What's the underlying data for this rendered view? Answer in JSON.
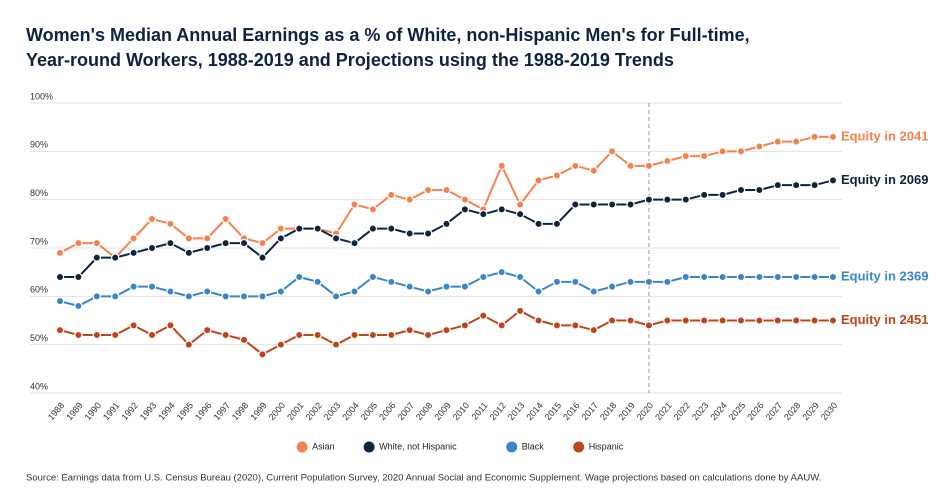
{
  "chart_data": {
    "type": "line",
    "title": "Women's Median Annual Earnings as a % of White, non-Hispanic Men's for Full-time,",
    "subtitle": "Year-round Workers, 1988-2019 and Projections using the 1988-2019 Trends",
    "source": "Source: Earnings data from U.S. Census Bureau (2020), Current Population Survey, 2020 Annual Social and Economic Supplement. Wage projections based on calculations done by AAUW.",
    "categories": [
      "1988",
      "1989",
      "1990",
      "1991",
      "1992",
      "1993",
      "1994",
      "1995",
      "1996",
      "1997",
      "1998",
      "1999",
      "2000",
      "2001",
      "2002",
      "2003",
      "2004",
      "2005",
      "2006",
      "2007",
      "2008",
      "2009",
      "2010",
      "2011",
      "2012",
      "2013",
      "2014",
      "2015",
      "2016",
      "2017",
      "2018",
      "2019",
      "2020",
      "2021",
      "2022",
      "2023",
      "2024",
      "2025",
      "2026",
      "2027",
      "2028",
      "2029",
      "2030"
    ],
    "projection_start": "2020",
    "ylim": [
      40,
      100
    ],
    "yticks": [
      {
        "value": 40,
        "label": "40%"
      },
      {
        "value": 50,
        "label": "50%"
      },
      {
        "value": 60,
        "label": "60%"
      },
      {
        "value": 70,
        "label": "70%"
      },
      {
        "value": 80,
        "label": "80%"
      },
      {
        "value": 90,
        "label": "90%"
      },
      {
        "value": 100,
        "label": "100%"
      }
    ],
    "grid": true,
    "legend": "bottom",
    "series": [
      {
        "name": "Asian",
        "color": "#f4824e",
        "end_label": "Equity in 2041",
        "values": [
          69,
          71,
          71,
          68,
          72,
          76,
          75,
          72,
          72,
          76,
          72,
          71,
          74,
          74,
          74,
          73,
          79,
          78,
          81,
          80,
          82,
          82,
          80,
          78,
          87,
          79,
          84,
          85,
          87,
          86,
          90,
          87,
          87,
          88,
          89,
          89,
          90,
          90,
          91,
          92,
          92,
          93,
          93
        ]
      },
      {
        "name": "White, not Hispanic",
        "color": "#0f2341",
        "end_label": "Equity in 2069",
        "values": [
          64,
          64,
          68,
          68,
          69,
          70,
          71,
          69,
          70,
          71,
          71,
          68,
          72,
          74,
          74,
          72,
          71,
          74,
          74,
          73,
          73,
          75,
          78,
          77,
          78,
          77,
          75,
          75,
          79,
          79,
          79,
          79,
          80,
          80,
          80,
          81,
          81,
          82,
          82,
          83,
          83,
          83,
          84
        ]
      },
      {
        "name": "Black",
        "color": "#3a85c9",
        "end_label": "Equity in 2369",
        "values": [
          59,
          58,
          60,
          60,
          62,
          62,
          61,
          60,
          61,
          60,
          60,
          60,
          61,
          64,
          63,
          60,
          61,
          64,
          63,
          62,
          61,
          62,
          62,
          64,
          65,
          64,
          61,
          63,
          63,
          61,
          62,
          63,
          63,
          63,
          64,
          64,
          64,
          64,
          64,
          64,
          64,
          64,
          64
        ]
      },
      {
        "name": "Hispanic",
        "color": "#c0441b",
        "end_label": "Equity in 2451",
        "values": [
          53,
          52,
          52,
          52,
          54,
          52,
          54,
          50,
          53,
          52,
          51,
          48,
          50,
          52,
          52,
          50,
          52,
          52,
          52,
          53,
          52,
          53,
          54,
          56,
          54,
          57,
          55,
          54,
          54,
          53,
          55,
          55,
          54,
          55,
          55,
          55,
          55,
          55,
          55,
          55,
          55,
          55,
          55
        ]
      }
    ]
  }
}
